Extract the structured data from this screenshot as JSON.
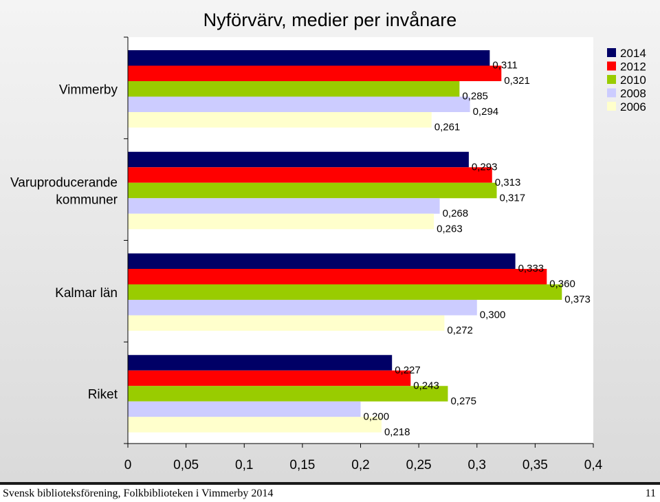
{
  "chart_data": {
    "type": "bar",
    "orientation": "horizontal",
    "title": "Nyförvärv, medier per invånare",
    "categories": [
      "Vimmerby",
      "Varuproducerande kommuner",
      "Kalmar län",
      "Riket"
    ],
    "category_lines": [
      [
        "Vimmerby"
      ],
      [
        "Varuproducerande",
        "kommuner"
      ],
      [
        "Kalmar län"
      ],
      [
        "Riket"
      ]
    ],
    "series": [
      {
        "name": "2014",
        "color": "#000066",
        "values": [
          0.311,
          0.293,
          0.333,
          0.227
        ],
        "labels": [
          "0,311",
          "0,293",
          "0,333",
          "0,227"
        ]
      },
      {
        "name": "2012",
        "color": "#ff0000",
        "values": [
          0.321,
          0.313,
          0.36,
          0.243
        ],
        "labels": [
          "0,321",
          "0,313",
          "0,360",
          "0,243"
        ]
      },
      {
        "name": "2010",
        "color": "#99cc00",
        "values": [
          0.285,
          0.317,
          0.373,
          0.275
        ],
        "labels": [
          "0,285",
          "0,317",
          "0,373",
          "0,275"
        ]
      },
      {
        "name": "2008",
        "color": "#ccccff",
        "values": [
          0.294,
          0.268,
          0.3,
          0.2
        ],
        "labels": [
          "0,294",
          "0,268",
          "0,300",
          "0,200"
        ]
      },
      {
        "name": "2006",
        "color": "#ffffcc",
        "values": [
          0.261,
          0.263,
          0.272,
          0.218
        ],
        "labels": [
          "0,261",
          "0,263",
          "0,272",
          "0,218"
        ]
      }
    ],
    "xlim": [
      0,
      0.4
    ],
    "xticks": [
      0,
      0.05,
      0.1,
      0.15,
      0.2,
      0.25,
      0.3,
      0.35,
      0.4
    ],
    "xtick_labels": [
      "0",
      "0,05",
      "0,1",
      "0,15",
      "0,2",
      "0,25",
      "0,3",
      "0,35",
      "0,4"
    ],
    "legend_position": "top-right",
    "grid": false
  },
  "footer": {
    "left": "Svensk biblioteksförening, Folkbiblioteken i Vimmerby 2014",
    "page_number": "11"
  }
}
